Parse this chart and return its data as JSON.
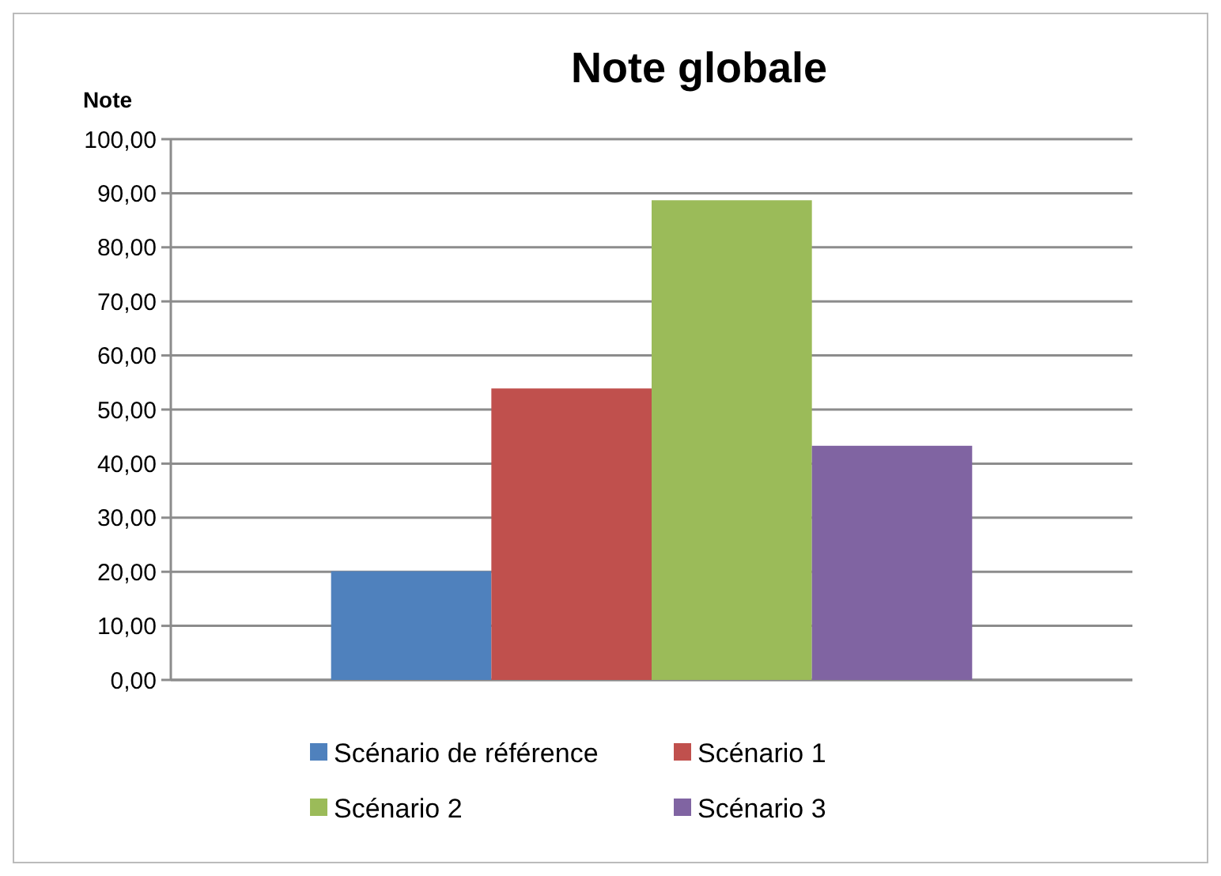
{
  "chart_data": {
    "type": "bar",
    "title": "Note globale",
    "ylabel": "Note",
    "categories": [
      null
    ],
    "series": [
      {
        "name": "Scénario de référence",
        "color": "#4f81bd",
        "values": [
          20.1
        ]
      },
      {
        "name": "Scénario 1",
        "color": "#c0504d",
        "values": [
          53.9
        ]
      },
      {
        "name": "Scénario 2",
        "color": "#9bbb59",
        "values": [
          88.7
        ]
      },
      {
        "name": "Scénario 3",
        "color": "#8064a2",
        "values": [
          43.3
        ]
      }
    ],
    "ylim": [
      0,
      100
    ],
    "yticks": [
      {
        "value": 0,
        "label": "0,00"
      },
      {
        "value": 10,
        "label": "10,00"
      },
      {
        "value": 20,
        "label": "20,00"
      },
      {
        "value": 30,
        "label": "30,00"
      },
      {
        "value": 40,
        "label": "40,00"
      },
      {
        "value": 50,
        "label": "50,00"
      },
      {
        "value": 60,
        "label": "60,00"
      },
      {
        "value": 70,
        "label": "70,00"
      },
      {
        "value": 80,
        "label": "80,00"
      },
      {
        "value": 90,
        "label": "90,00"
      },
      {
        "value": 100,
        "label": "100,00"
      }
    ],
    "grid": "y",
    "legend": "bottom"
  }
}
